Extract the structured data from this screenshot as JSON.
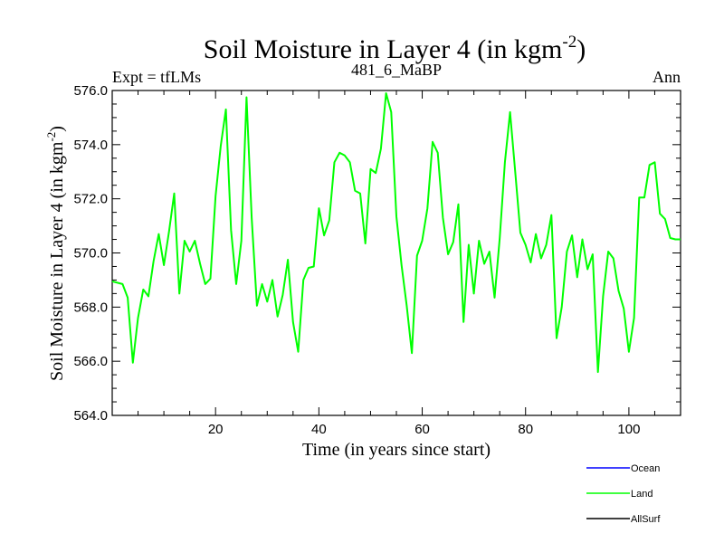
{
  "header": {
    "title_main": "Soil Moisture in Layer 4 (in kgm",
    "title_sup": "-2",
    "title_close": ")",
    "left_label": "Expt = tfLMs",
    "center_label": "481_6_MaBP",
    "right_label": "Ann"
  },
  "chart_data": {
    "type": "line",
    "title": "Soil Moisture in Layer 4 (in kgm-2)",
    "xlabel": "Time (in years since start)",
    "ylabel": "Soil Moisture in Layer 4 (in kgm-2)",
    "ylabel_main": "Soil Moisture in Layer 4 (in kgm",
    "ylabel_sup": "-2",
    "ylabel_close": ")",
    "xlim": [
      0,
      110
    ],
    "ylim": [
      564.0,
      576.0
    ],
    "x_ticks": [
      20,
      40,
      60,
      80,
      100
    ],
    "x_tick_labels": [
      "20",
      "40",
      "60",
      "80",
      "100"
    ],
    "y_ticks": [
      564.0,
      566.0,
      568.0,
      570.0,
      572.0,
      574.0,
      576.0
    ],
    "y_tick_labels": [
      "564.0",
      "566.0",
      "568.0",
      "570.0",
      "572.0",
      "574.0",
      "576.0"
    ],
    "legend": [
      {
        "name": "Ocean",
        "color": "#0000ff"
      },
      {
        "name": "Land",
        "color": "#00ff00"
      },
      {
        "name": "AllSurf",
        "color": "#000000"
      }
    ],
    "legend_position": "bottom-right",
    "series": [
      {
        "name": "Land",
        "color": "#00ff00",
        "x": [
          0,
          1,
          2,
          3,
          4,
          5,
          6,
          7,
          8,
          9,
          10,
          11,
          12,
          13,
          14,
          15,
          16,
          17,
          18,
          19,
          20,
          21,
          22,
          23,
          24,
          25,
          26,
          27,
          28,
          29,
          30,
          31,
          32,
          33,
          34,
          35,
          36,
          37,
          38,
          39,
          40,
          41,
          42,
          43,
          44,
          45,
          46,
          47,
          48,
          49,
          50,
          51,
          52,
          53,
          54,
          55,
          56,
          57,
          58,
          59,
          60,
          61,
          62,
          63,
          64,
          65,
          66,
          67,
          68,
          69,
          70,
          71,
          72,
          73,
          74,
          75,
          76,
          77,
          78,
          79,
          80,
          81,
          82,
          83,
          84,
          85,
          86,
          87,
          88,
          89,
          90,
          91,
          92,
          93,
          94,
          95,
          96,
          97,
          98,
          99,
          100,
          101,
          102,
          103,
          104,
          105,
          106,
          107,
          108,
          109,
          110
        ],
        "values": [
          568.95,
          568.9,
          568.85,
          568.35,
          565.95,
          567.6,
          568.65,
          568.4,
          569.7,
          570.7,
          569.55,
          570.8,
          572.2,
          568.5,
          570.45,
          570.05,
          570.45,
          569.6,
          568.85,
          569.05,
          572.1,
          573.95,
          575.3,
          570.85,
          568.85,
          570.45,
          575.75,
          571.3,
          568.05,
          568.85,
          568.2,
          569.0,
          567.65,
          568.45,
          569.75,
          567.45,
          566.35,
          569.0,
          569.45,
          569.5,
          571.65,
          570.65,
          571.2,
          573.35,
          573.7,
          573.6,
          573.35,
          572.3,
          572.2,
          570.35,
          573.1,
          572.95,
          573.85,
          575.9,
          575.2,
          571.35,
          569.55,
          568.05,
          566.3,
          569.9,
          570.45,
          571.65,
          574.1,
          573.7,
          571.3,
          569.95,
          570.4,
          571.8,
          567.45,
          570.3,
          568.5,
          570.45,
          569.6,
          570.05,
          568.35,
          570.55,
          573.35,
          575.2,
          573.0,
          570.75,
          570.3,
          569.65,
          570.7,
          569.8,
          570.3,
          571.4,
          566.85,
          568.0,
          570.05,
          570.65,
          569.1,
          570.5,
          569.4,
          569.95,
          565.6,
          568.4,
          570.05,
          569.8,
          568.6,
          567.95,
          566.35,
          567.6,
          572.05,
          572.05,
          573.25,
          573.35,
          571.45,
          571.25,
          570.55,
          570.5,
          570.5
        ]
      }
    ]
  }
}
